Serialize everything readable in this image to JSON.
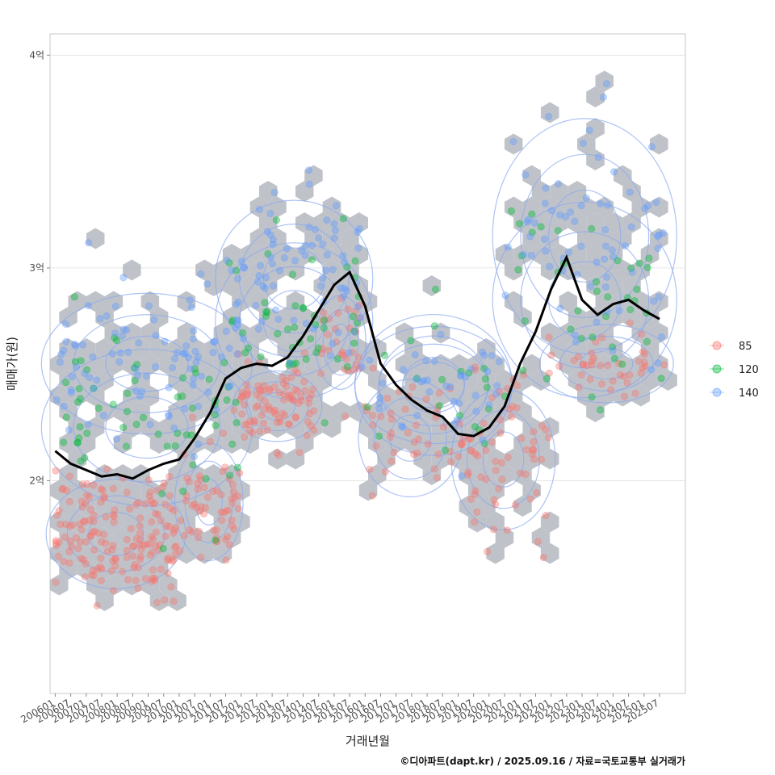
{
  "chart_data": {
    "type": "scatter",
    "title": "",
    "xlabel": "거래년월",
    "ylabel": "매매가(원)",
    "caption": "©디아파트(dapt.kr) / 2025.09.16 / 자료=국토교통부 실거래가",
    "ylim": [
      1.0,
      4.1
    ],
    "xlim": [
      "200511",
      "202605"
    ],
    "x_ticks": [
      "200601",
      "200607",
      "200701",
      "200707",
      "200801",
      "200807",
      "200901",
      "200907",
      "201001",
      "201007",
      "201101",
      "201107",
      "201201",
      "201207",
      "201301",
      "201307",
      "201401",
      "201407",
      "201501",
      "201507",
      "201601",
      "201607",
      "201701",
      "201707",
      "201801",
      "201807",
      "201901",
      "201907",
      "202001",
      "202007",
      "202101",
      "202107",
      "202201",
      "202207",
      "202301",
      "202307",
      "202401",
      "202407",
      "202501",
      "202507"
    ],
    "y_ticks": [
      {
        "value": 2,
        "label": "2억"
      },
      {
        "value": 3,
        "label": "3억"
      },
      {
        "value": 4,
        "label": "4억"
      }
    ],
    "legend": {
      "position": "right",
      "title": "",
      "entries": [
        {
          "label": "85",
          "color": "#f8766d"
        },
        {
          "label": "120",
          "color": "#00ba38"
        },
        {
          "label": "140",
          "color": "#619cff"
        }
      ]
    },
    "hex_color": "#b4b9bf",
    "contour_color": "#8aa8f0",
    "trend_color": "#000000",
    "series": [
      {
        "name": "85",
        "color": "#f8766d",
        "clusters": [
          {
            "start": "200601",
            "end": "200912",
            "mean": 1.75,
            "sd": 0.14,
            "n": 170
          },
          {
            "start": "201001",
            "end": "201112",
            "mean": 1.9,
            "sd": 0.15,
            "n": 60
          },
          {
            "start": "201112",
            "end": "201406",
            "mean": 2.35,
            "sd": 0.09,
            "n": 90
          },
          {
            "start": "201407",
            "end": "201512",
            "mean": 2.65,
            "sd": 0.12,
            "n": 30
          },
          {
            "start": "201601",
            "end": "201812",
            "mean": 2.2,
            "sd": 0.15,
            "n": 40
          },
          {
            "start": "201901",
            "end": "202112",
            "mean": 2.1,
            "sd": 0.18,
            "n": 70
          },
          {
            "start": "202112",
            "end": "202509",
            "mean": 2.55,
            "sd": 0.1,
            "n": 40
          }
        ]
      },
      {
        "name": "120",
        "color": "#00ba38",
        "clusters": [
          {
            "start": "200601",
            "end": "201112",
            "mean": 2.25,
            "sd": 0.2,
            "n": 60
          },
          {
            "start": "201107",
            "end": "201512",
            "mean": 2.75,
            "sd": 0.2,
            "n": 50
          },
          {
            "start": "201601",
            "end": "202006",
            "mean": 2.45,
            "sd": 0.18,
            "n": 20
          },
          {
            "start": "202007",
            "end": "202509",
            "mean": 2.85,
            "sd": 0.25,
            "n": 40
          }
        ]
      },
      {
        "name": "140",
        "color": "#619cff",
        "clusters": [
          {
            "start": "200601",
            "end": "201112",
            "mean": 2.55,
            "sd": 0.18,
            "n": 90
          },
          {
            "start": "201107",
            "end": "201512",
            "mean": 2.95,
            "sd": 0.2,
            "n": 80
          },
          {
            "start": "201601",
            "end": "202006",
            "mean": 2.45,
            "sd": 0.15,
            "n": 40
          },
          {
            "start": "202007",
            "end": "202509",
            "mean": 3.15,
            "sd": 0.3,
            "n": 70
          }
        ]
      }
    ],
    "trend": {
      "x": [
        "200601",
        "200607",
        "200701",
        "200707",
        "200801",
        "200807",
        "200901",
        "200907",
        "201001",
        "201007",
        "201101",
        "201107",
        "201201",
        "201207",
        "201301",
        "201307",
        "201401",
        "201407",
        "201501",
        "201507",
        "201601",
        "201607",
        "201701",
        "201707",
        "201801",
        "201807",
        "201901",
        "201907",
        "202001",
        "202007",
        "202101",
        "202107",
        "202201",
        "202207",
        "202301",
        "202307",
        "202401",
        "202407",
        "202501",
        "202507"
      ],
      "y": [
        2.14,
        2.08,
        2.05,
        2.02,
        2.03,
        2.01,
        2.05,
        2.08,
        2.1,
        2.2,
        2.32,
        2.48,
        2.53,
        2.55,
        2.54,
        2.58,
        2.68,
        2.8,
        2.92,
        2.98,
        2.82,
        2.55,
        2.45,
        2.38,
        2.33,
        2.3,
        2.22,
        2.21,
        2.25,
        2.35,
        2.55,
        2.7,
        2.9,
        3.05,
        2.85,
        2.78,
        2.83,
        2.85,
        2.8,
        2.76
      ]
    }
  }
}
